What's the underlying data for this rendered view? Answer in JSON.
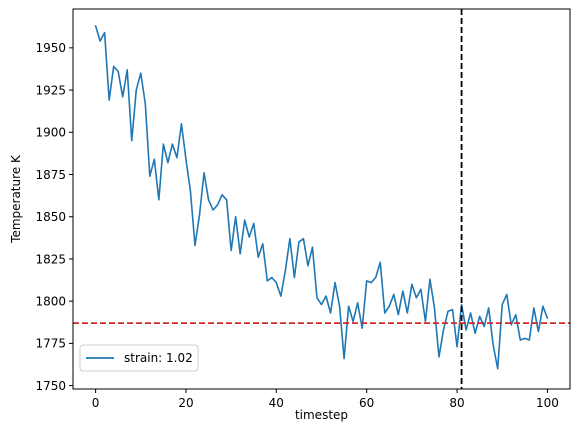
{
  "chart_data": {
    "type": "line",
    "xlabel": "timestep",
    "ylabel": "Temperature K",
    "xlim": [
      -5,
      105
    ],
    "ylim": [
      1748,
      1973
    ],
    "xticks": [
      0,
      20,
      40,
      60,
      80,
      100
    ],
    "yticks": [
      1750,
      1775,
      1800,
      1825,
      1850,
      1875,
      1900,
      1925,
      1950
    ],
    "grid": false,
    "legend_position": "lower-left",
    "series": [
      {
        "name": "strain: 1.02",
        "color": "#1f77b4",
        "x": [
          0,
          1,
          2,
          3,
          4,
          5,
          6,
          7,
          8,
          9,
          10,
          11,
          12,
          13,
          14,
          15,
          16,
          17,
          18,
          19,
          20,
          21,
          22,
          23,
          24,
          25,
          26,
          27,
          28,
          29,
          30,
          31,
          32,
          33,
          34,
          35,
          36,
          37,
          38,
          39,
          40,
          41,
          42,
          43,
          44,
          45,
          46,
          47,
          48,
          49,
          50,
          51,
          52,
          53,
          54,
          55,
          56,
          57,
          58,
          59,
          60,
          61,
          62,
          63,
          64,
          65,
          66,
          67,
          68,
          69,
          70,
          71,
          72,
          73,
          74,
          75,
          76,
          77,
          78,
          79,
          80,
          81,
          82,
          83,
          84,
          85,
          86,
          87,
          88,
          89,
          90,
          91,
          92,
          93,
          94,
          95,
          96,
          97,
          98,
          99,
          100
        ],
        "y": [
          1963,
          1954,
          1959,
          1919,
          1939,
          1936,
          1921,
          1937,
          1895,
          1925,
          1935,
          1917,
          1874,
          1884,
          1860,
          1893,
          1882,
          1893,
          1885,
          1905,
          1884,
          1865,
          1833,
          1851,
          1876,
          1860,
          1854,
          1857,
          1863,
          1860,
          1830,
          1850,
          1828,
          1848,
          1838,
          1846,
          1826,
          1834,
          1812,
          1814,
          1811,
          1803,
          1818,
          1837,
          1814,
          1835,
          1837,
          1821,
          1832,
          1802,
          1798,
          1803,
          1793,
          1811,
          1797,
          1766,
          1797,
          1788,
          1799,
          1784,
          1812,
          1811,
          1814,
          1823,
          1793,
          1797,
          1804,
          1792,
          1806,
          1793,
          1810,
          1802,
          1807,
          1788,
          1813,
          1796,
          1767,
          1783,
          1794,
          1795,
          1773,
          1798,
          1783,
          1793,
          1781,
          1791,
          1785,
          1796,
          1774,
          1760,
          1798,
          1804,
          1786,
          1792,
          1777,
          1778,
          1777,
          1796,
          1782,
          1797,
          1790
        ]
      }
    ],
    "annotations": [
      {
        "kind": "vertical-line",
        "x": 81,
        "style": "dashed",
        "color": "#000000"
      },
      {
        "kind": "horizontal-line",
        "y": 1787,
        "style": "dashed",
        "color": "#d62728"
      }
    ]
  }
}
